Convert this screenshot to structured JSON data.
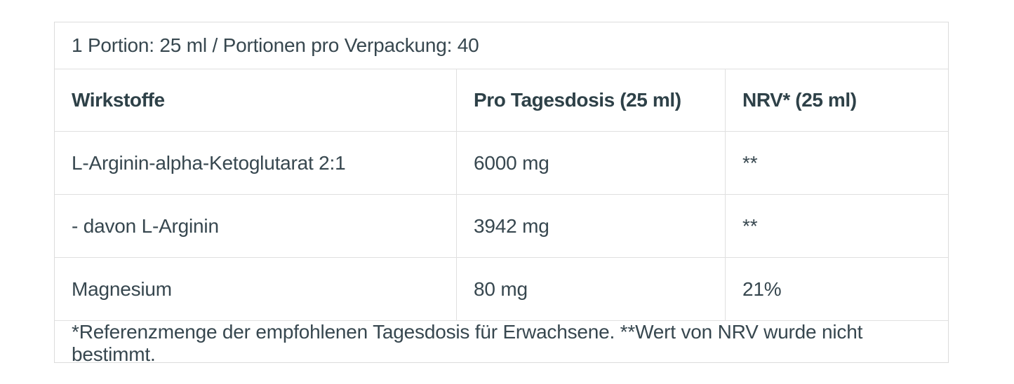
{
  "colors": {
    "text": "#37474f",
    "header_text": "#2e4148",
    "border": "#e0e0e0",
    "background": "#ffffff"
  },
  "table": {
    "portion_info": "1 Portion: 25 ml / Portionen pro Verpackung: 40",
    "columns": [
      "Wirkstoffe",
      "Pro Tagesdosis (25 ml)",
      "NRV* (25 ml)"
    ],
    "rows": [
      {
        "name": "L-Arginin-alpha-Ketoglutarat 2:1",
        "dose": "6000 mg",
        "nrv": "**"
      },
      {
        "name": "- davon L-Arginin",
        "dose": "3942 mg",
        "nrv": "**"
      },
      {
        "name": "Magnesium",
        "dose": "80 mg",
        "nrv": "21%"
      }
    ],
    "footnote": "*Referenzmenge der empfohlenen Tagesdosis für Erwachsene. **Wert von NRV wurde nicht bestimmt."
  }
}
